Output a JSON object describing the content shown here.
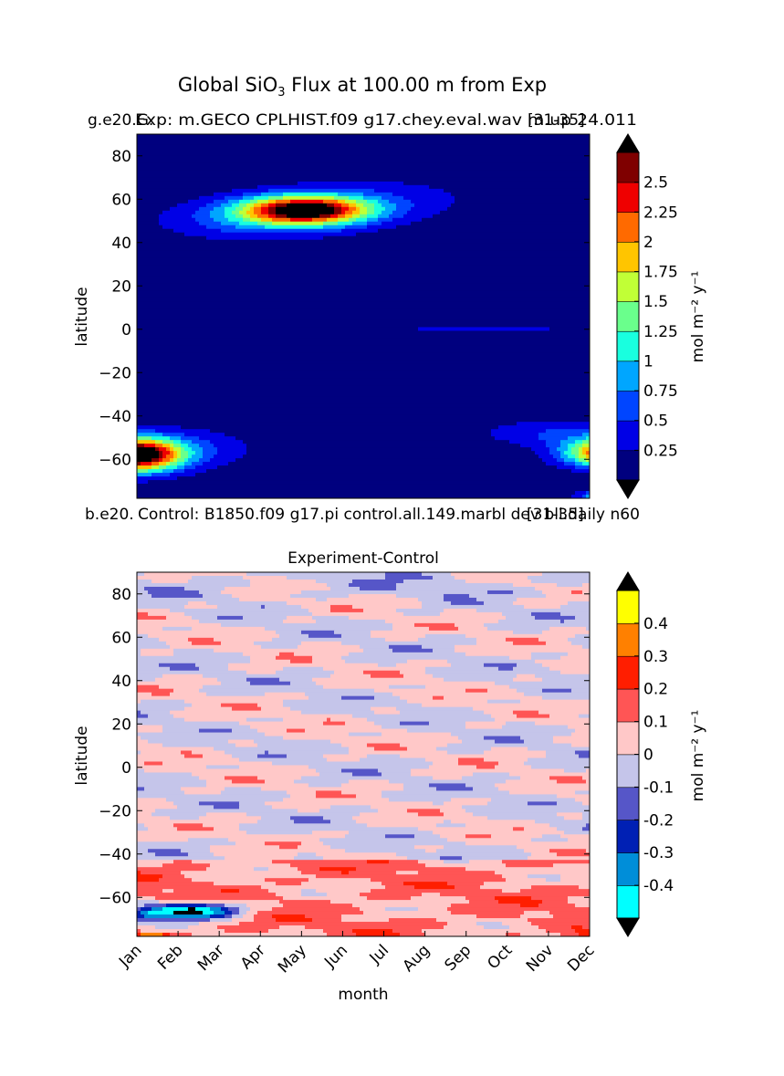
{
  "suptitle": {
    "prefix": "Global SiO",
    "subscript": "3",
    "suffix": " Flux at 100.00 m from Exp"
  },
  "colors": {
    "top_panel_levels": [
      "#00007f",
      "#0000e6",
      "#0045ff",
      "#00a6ff",
      "#19ffdf",
      "#6aff8c",
      "#c1ff36",
      "#ffc500",
      "#ff6a00",
      "#ef0000",
      "#7f0000"
    ],
    "diff_panel_levels": [
      "#00ffff",
      "#008ed9",
      "#0020b4",
      "#5656c8",
      "#c5c5ea",
      "#ffc8c8",
      "#ff5555",
      "#ff1e00",
      "#ff8000",
      "#ffff00"
    ],
    "under": "#000000",
    "over": "#000000",
    "contour_line": "#333333"
  },
  "chart_data": [
    {
      "type": "heatmap",
      "title_left": "Exp: g.e20.G.GECO CPLHIST.f09 g17.chey.eval.wav m.up 24.011",
      "title_left_overlap_a": "g.e20.G.",
      "title_left_overlap_b": "Exp: m.GECO CPLHIST.f09 g17.chey.eval.wav m.up 24.011",
      "title_right": "[31-35]",
      "xlabel": "",
      "ylabel": "latitude",
      "x_categories": [
        "Jan",
        "Feb",
        "Mar",
        "Apr",
        "May",
        "Jun",
        "Jul",
        "Aug",
        "Sep",
        "Oct",
        "Nov",
        "Dec"
      ],
      "yticks": [
        80,
        60,
        40,
        20,
        0,
        -20,
        -40,
        -60
      ],
      "ytick_labels": [
        "80",
        "60",
        "40",
        "20",
        "0",
        "−20",
        "−40",
        "−60"
      ],
      "ylim": [
        -78,
        90
      ],
      "colorbar": {
        "levels": [
          0,
          0.25,
          0.5,
          0.75,
          1,
          1.25,
          1.5,
          1.75,
          2,
          2.25,
          2.5,
          2.75
        ],
        "tick_labels": [
          "0.25",
          "0.5",
          "0.75",
          "1",
          "1.25",
          "1.5",
          "1.75",
          "2",
          "2.25",
          "2.5"
        ],
        "extend": "both",
        "label": "mol m⁻² y⁻¹"
      },
      "features": [
        {
          "name": "northern bloom",
          "center_month": 4.1,
          "center_lat": 55,
          "peak": 2.8
        },
        {
          "name": "southern bloom Jan",
          "center_month": 0.0,
          "center_lat": -58,
          "peak": 2.9
        },
        {
          "name": "southern bloom Dec",
          "center_month": 11.9,
          "center_lat": -57,
          "peak": 2.9
        },
        {
          "name": "equatorial band",
          "lat_range": [
            -2,
            3
          ],
          "value": 0.3
        }
      ]
    },
    {
      "type": "heatmap",
      "title_left": "Control: b.e20.B1850.f09 g17.pi control.all.149.marbl dev bll.daily n60",
      "title_left_overlap_a": "b.e20.",
      "title_left_overlap_b": "Control: B1850.f09 g17.pi control.all.149.marbl dev bll.daily n60",
      "title_right": "[31-35]",
      "title_center": "Experiment-Control",
      "xlabel": "month",
      "ylabel": "latitude",
      "x_categories": [
        "Jan",
        "Feb",
        "Mar",
        "Apr",
        "May",
        "Jun",
        "Jul",
        "Aug",
        "Sep",
        "Oct",
        "Nov",
        "Dec"
      ],
      "yticks": [
        80,
        60,
        40,
        20,
        0,
        -20,
        -40,
        -60
      ],
      "ytick_labels": [
        "80",
        "60",
        "40",
        "20",
        "0",
        "−20",
        "−40",
        "−60"
      ],
      "ylim": [
        -78,
        90
      ],
      "colorbar": {
        "levels": [
          -0.5,
          -0.4,
          -0.3,
          -0.2,
          -0.1,
          0,
          0.1,
          0.2,
          0.3,
          0.4,
          0.5
        ],
        "tick_labels": [
          "-0.4",
          "-0.3",
          "-0.2",
          "-0.1",
          "0",
          "0.1",
          "0.2",
          "0.3",
          "0.4"
        ],
        "extend": "both",
        "label": "mol m⁻² y⁻¹"
      },
      "features": [
        {
          "name": "southern negative anomaly",
          "center_month": 1.4,
          "center_lat": -66,
          "min": -0.55
        },
        {
          "name": "southern positive anomaly Dec",
          "center_month": 11.6,
          "center_lat": -77,
          "max": 0.3
        }
      ]
    }
  ]
}
